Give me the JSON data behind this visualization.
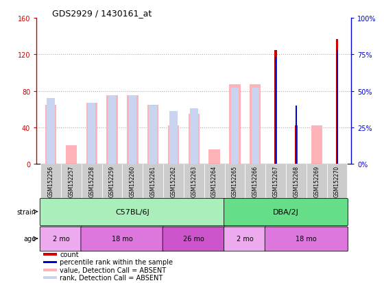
{
  "title": "GDS2929 / 1430161_at",
  "samples": [
    "GSM152256",
    "GSM152257",
    "GSM152258",
    "GSM152259",
    "GSM152260",
    "GSM152261",
    "GSM152262",
    "GSM152263",
    "GSM152264",
    "GSM152265",
    "GSM152266",
    "GSM152267",
    "GSM152268",
    "GSM152269",
    "GSM152270"
  ],
  "count_values": [
    null,
    null,
    null,
    null,
    null,
    null,
    null,
    null,
    null,
    null,
    null,
    125,
    42,
    null,
    137
  ],
  "rank_values": [
    null,
    null,
    null,
    null,
    null,
    null,
    null,
    null,
    null,
    null,
    null,
    73,
    40,
    null,
    78
  ],
  "absent_value_values": [
    65,
    20,
    67,
    75,
    75,
    65,
    42,
    55,
    16,
    87,
    87,
    null,
    null,
    42,
    null
  ],
  "absent_rank_values": [
    45,
    null,
    42,
    47,
    47,
    40,
    36,
    38,
    null,
    52,
    52,
    null,
    null,
    null,
    null
  ],
  "ylim_left": [
    0,
    160
  ],
  "ylim_right": [
    0,
    100
  ],
  "yticks_left": [
    0,
    40,
    80,
    120,
    160
  ],
  "yticks_right": [
    0,
    25,
    50,
    75,
    100
  ],
  "ytick_labels_left": [
    "0",
    "40",
    "80",
    "120",
    "160"
  ],
  "ytick_labels_right": [
    "0%",
    "25%",
    "50%",
    "75%",
    "100%"
  ],
  "left_axis_color": "#cc0000",
  "right_axis_color": "#0000cc",
  "count_color": "#cc0000",
  "rank_color": "#0000cc",
  "absent_value_color": "#ffb3b8",
  "absent_rank_color": "#c8d4f0",
  "strain_groups": [
    {
      "label": "C57BL/6J",
      "start": 0,
      "end": 8,
      "color": "#aaeebb"
    },
    {
      "label": "DBA/2J",
      "start": 9,
      "end": 14,
      "color": "#66dd88"
    }
  ],
  "age_groups": [
    {
      "label": "2 mo",
      "start": 0,
      "end": 1,
      "color": "#eeaaee"
    },
    {
      "label": "18 mo",
      "start": 2,
      "end": 5,
      "color": "#dd77dd"
    },
    {
      "label": "26 mo",
      "start": 6,
      "end": 8,
      "color": "#cc55cc"
    },
    {
      "label": "2 mo",
      "start": 9,
      "end": 10,
      "color": "#eeaaee"
    },
    {
      "label": "18 mo",
      "start": 11,
      "end": 14,
      "color": "#dd77dd"
    }
  ],
  "legend_items": [
    {
      "label": "count",
      "color": "#cc0000"
    },
    {
      "label": "percentile rank within the sample",
      "color": "#0000cc"
    },
    {
      "label": "value, Detection Call = ABSENT",
      "color": "#ffb3b8"
    },
    {
      "label": "rank, Detection Call = ABSENT",
      "color": "#c8d4f0"
    }
  ],
  "background_color": "#ffffff",
  "plot_bg_color": "#ffffff",
  "tick_bg_color": "#cccccc"
}
